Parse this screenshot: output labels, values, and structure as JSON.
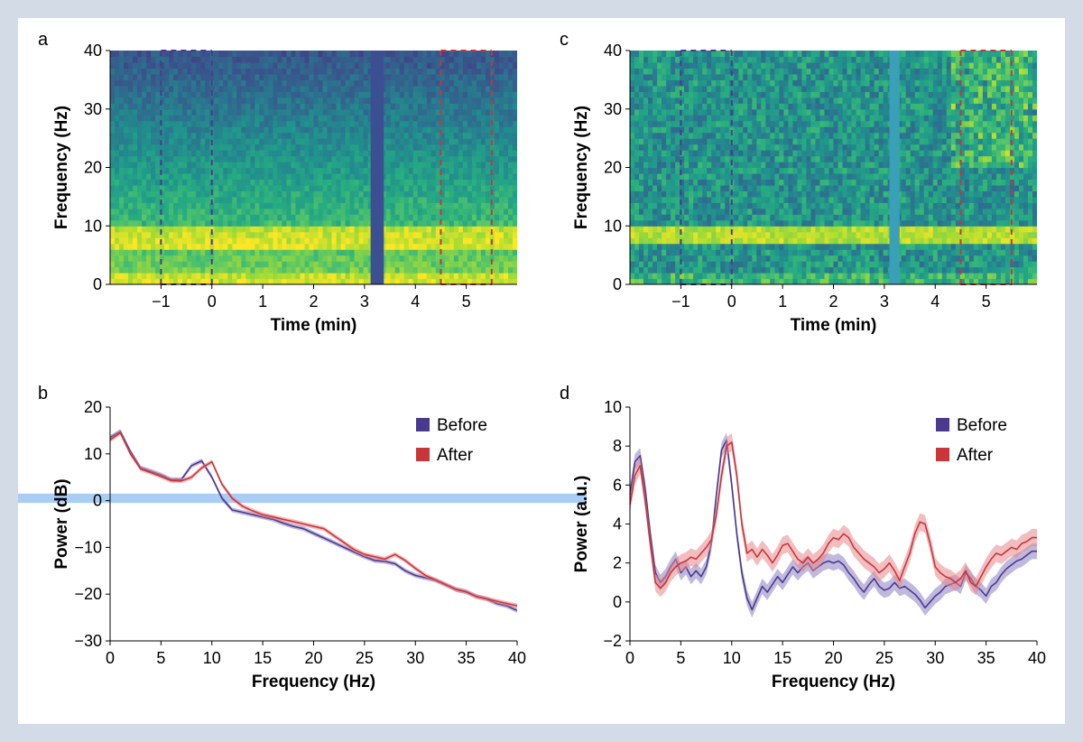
{
  "figure": {
    "colors": {
      "before": "#4b3a8c",
      "after": "#c8363a",
      "before_fill": "#8d7fc2",
      "after_fill": "#e8878a",
      "highlight": "#a9cdf5"
    }
  },
  "chart_data": [
    {
      "id": "a",
      "type": "heatmap",
      "panel_label": "a",
      "title": "",
      "xlabel": "Time (min)",
      "ylabel": "Frequency (Hz)",
      "xlim": [
        -2,
        6
      ],
      "ylim": [
        0,
        40
      ],
      "xticks": [
        -1,
        0,
        1,
        2,
        3,
        4,
        5
      ],
      "yticks": [
        0,
        10,
        20,
        30,
        40
      ],
      "xtick_labels": [
        "−1",
        "0",
        "1",
        "2",
        "3",
        "4",
        "5"
      ],
      "ytick_labels": [
        "0",
        "10",
        "20",
        "30",
        "40"
      ],
      "alpha_band_hz": [
        6,
        10
      ],
      "gap_min": [
        3.12,
        3.38
      ],
      "gap_style": "dark",
      "before_window_min": [
        -1,
        0
      ],
      "after_window_min": [
        4.5,
        5.5
      ]
    },
    {
      "id": "c",
      "type": "heatmap",
      "panel_label": "c",
      "title": "",
      "xlabel": "Time (min)",
      "ylabel": "Frequency (Hz)",
      "xlim": [
        -2,
        6
      ],
      "ylim": [
        0,
        40
      ],
      "xticks": [
        -1,
        0,
        1,
        2,
        3,
        4,
        5
      ],
      "yticks": [
        0,
        10,
        20,
        30,
        40
      ],
      "xtick_labels": [
        "−1",
        "0",
        "1",
        "2",
        "3",
        "4",
        "5"
      ],
      "ytick_labels": [
        "0",
        "10",
        "20",
        "30",
        "40"
      ],
      "alpha_band_hz": [
        7.5,
        9.5
      ],
      "gap_min": [
        3.1,
        3.3
      ],
      "gap_style": "flat",
      "before_window_min": [
        -1,
        0
      ],
      "after_window_min": [
        4.5,
        5.5
      ]
    },
    {
      "id": "b",
      "type": "line",
      "panel_label": "b",
      "title": "",
      "xlabel": "Frequency (Hz)",
      "ylabel": "Power (dB)",
      "xlim": [
        0,
        40
      ],
      "ylim": [
        -30,
        20
      ],
      "xticks": [
        0,
        5,
        10,
        15,
        20,
        25,
        30,
        35,
        40
      ],
      "yticks": [
        -30,
        -20,
        -10,
        0,
        10,
        20
      ],
      "xtick_labels": [
        "0",
        "5",
        "10",
        "15",
        "20",
        "25",
        "30",
        "35",
        "40"
      ],
      "ytick_labels": [
        "−30",
        "−20",
        "−10",
        "0",
        "10",
        "20"
      ],
      "legend": [
        "Before",
        "After"
      ],
      "legend_position": "top-right",
      "highlight_band_y": [
        -0.5,
        1.5
      ],
      "series": [
        {
          "name": "Before",
          "x": [
            0,
            1,
            2,
            3,
            4,
            5,
            6,
            7,
            8,
            9,
            10,
            11,
            12,
            13,
            14,
            15,
            16,
            17,
            18,
            19,
            20,
            21,
            22,
            23,
            24,
            25,
            26,
            27,
            28,
            29,
            30,
            31,
            32,
            33,
            34,
            35,
            36,
            37,
            38,
            39,
            40
          ],
          "values": [
            13.5,
            14.8,
            10.5,
            7,
            6.3,
            5.5,
            4.5,
            4.5,
            7.5,
            8.5,
            5,
            0.5,
            -2,
            -2.5,
            -3,
            -3.5,
            -4,
            -4.8,
            -5.5,
            -6,
            -7,
            -8,
            -9,
            -10,
            -11,
            -12,
            -12.8,
            -13,
            -13.5,
            -15,
            -16,
            -16.5,
            -17,
            -18,
            -19,
            -19.5,
            -20.5,
            -21,
            -22,
            -22.5,
            -23.5
          ],
          "band": 0.5
        },
        {
          "name": "After",
          "x": [
            0,
            1,
            2,
            3,
            4,
            5,
            6,
            7,
            8,
            9,
            10,
            11,
            12,
            13,
            14,
            15,
            16,
            17,
            18,
            19,
            20,
            21,
            22,
            23,
            24,
            25,
            26,
            27,
            28,
            29,
            30,
            31,
            32,
            33,
            34,
            35,
            36,
            37,
            38,
            39,
            40
          ],
          "values": [
            13,
            14.5,
            10,
            6.8,
            6,
            5.2,
            4.3,
            4.2,
            5,
            7,
            8.3,
            3.5,
            0.5,
            -1.2,
            -2.2,
            -3,
            -3.5,
            -4,
            -4.5,
            -5,
            -5.5,
            -6,
            -7.5,
            -9,
            -10.5,
            -11.5,
            -12,
            -12.5,
            -11.5,
            -12.8,
            -14.5,
            -16,
            -17,
            -18,
            -19,
            -19.5,
            -20.5,
            -21,
            -21.5,
            -22,
            -22.5
          ],
          "band": 0.5
        }
      ]
    },
    {
      "id": "d",
      "type": "line",
      "panel_label": "d",
      "title": "",
      "xlabel": "Frequency (Hz)",
      "ylabel": "Power (a.u.)",
      "xlim": [
        0,
        40
      ],
      "ylim": [
        -2,
        10
      ],
      "xticks": [
        0,
        5,
        10,
        15,
        20,
        25,
        30,
        35,
        40
      ],
      "yticks": [
        -2,
        0,
        2,
        4,
        6,
        8,
        10
      ],
      "xtick_labels": [
        "0",
        "5",
        "10",
        "15",
        "20",
        "25",
        "30",
        "35",
        "40"
      ],
      "ytick_labels": [
        "−2",
        "0",
        "2",
        "4",
        "6",
        "8",
        "10"
      ],
      "legend": [
        "Before",
        "After"
      ],
      "legend_position": "top-right",
      "series": [
        {
          "name": "Before",
          "x": [
            0,
            0.5,
            1,
            1.5,
            2,
            2.5,
            3,
            3.5,
            4,
            4.5,
            5,
            5.5,
            6,
            6.5,
            7,
            7.5,
            8,
            8.5,
            9,
            9.5,
            10,
            10.5,
            11,
            11.5,
            12,
            12.5,
            13,
            13.5,
            14,
            14.5,
            15,
            15.5,
            16,
            16.5,
            17,
            17.5,
            18,
            18.5,
            19,
            19.5,
            20,
            20.5,
            21,
            21.5,
            22,
            22.5,
            23,
            23.5,
            24,
            24.5,
            25,
            25.5,
            26,
            26.5,
            27,
            27.5,
            28,
            28.5,
            29,
            29.5,
            30,
            30.5,
            31,
            31.5,
            32,
            32.5,
            33,
            33.5,
            34,
            34.5,
            35,
            35.5,
            36,
            36.5,
            37,
            37.5,
            38,
            38.5,
            39,
            39.5,
            40
          ],
          "values": [
            5.5,
            7.2,
            7.5,
            5.8,
            3.5,
            1.5,
            1.0,
            1.3,
            1.8,
            2.2,
            1.5,
            1.8,
            1.3,
            1.6,
            1.3,
            1.8,
            3.0,
            5.5,
            7.8,
            8.3,
            6.0,
            3.5,
            1.5,
            0.2,
            -0.4,
            0.2,
            0.8,
            0.5,
            0.9,
            1.3,
            1.0,
            1.4,
            1.8,
            1.5,
            1.8,
            2.0,
            1.6,
            1.8,
            2.0,
            2.1,
            2.0,
            2.1,
            1.9,
            1.5,
            1.2,
            0.8,
            0.5,
            0.9,
            1.2,
            0.8,
            0.6,
            0.7,
            1.0,
            0.7,
            0.8,
            0.6,
            0.4,
            0.1,
            -0.3,
            0.0,
            0.3,
            0.5,
            0.8,
            0.9,
            1.0,
            0.8,
            1.5,
            1.2,
            0.8,
            0.6,
            0.3,
            0.8,
            1.0,
            1.4,
            1.7,
            1.9,
            2.1,
            2.2,
            2.4,
            2.6,
            2.6
          ],
          "band": 0.4
        },
        {
          "name": "After",
          "x": [
            0,
            0.5,
            1,
            1.5,
            2,
            2.5,
            3,
            3.5,
            4,
            4.5,
            5,
            5.5,
            6,
            6.5,
            7,
            7.5,
            8,
            8.5,
            9,
            9.5,
            10,
            10.5,
            11,
            11.5,
            12,
            12.5,
            13,
            13.5,
            14,
            14.5,
            15,
            15.5,
            16,
            16.5,
            17,
            17.5,
            18,
            18.5,
            19,
            19.5,
            20,
            20.5,
            21,
            21.5,
            22,
            22.5,
            23,
            23.5,
            24,
            24.5,
            25,
            25.5,
            26,
            26.5,
            27,
            27.5,
            28,
            28.5,
            29,
            29.5,
            30,
            30.5,
            31,
            31.5,
            32,
            32.5,
            33,
            33.5,
            34,
            34.5,
            35,
            35.5,
            36,
            36.5,
            37,
            37.5,
            38,
            38.5,
            39,
            39.5,
            40
          ],
          "values": [
            5.0,
            6.5,
            7.0,
            5.2,
            3.0,
            1.0,
            0.7,
            1.0,
            1.5,
            1.8,
            2.0,
            2.1,
            2.3,
            2.2,
            2.5,
            2.8,
            3.2,
            4.5,
            6.5,
            8.0,
            8.2,
            6.5,
            4.0,
            2.5,
            2.7,
            2.3,
            2.7,
            2.4,
            2.0,
            2.4,
            2.9,
            3.0,
            2.6,
            2.2,
            2.0,
            2.3,
            2.0,
            2.2,
            2.5,
            3.0,
            3.3,
            3.2,
            3.5,
            3.3,
            2.8,
            2.5,
            2.2,
            2.0,
            1.8,
            1.5,
            1.7,
            2.0,
            1.6,
            1.1,
            1.8,
            2.5,
            3.5,
            4.1,
            4.0,
            3.0,
            1.8,
            1.5,
            1.3,
            1.2,
            1.0,
            1.2,
            1.6,
            1.0,
            0.8,
            1.3,
            1.8,
            2.2,
            2.5,
            2.4,
            2.6,
            2.8,
            2.7,
            3.0,
            3.1,
            3.3,
            3.3
          ],
          "band": 0.45
        }
      ]
    }
  ]
}
